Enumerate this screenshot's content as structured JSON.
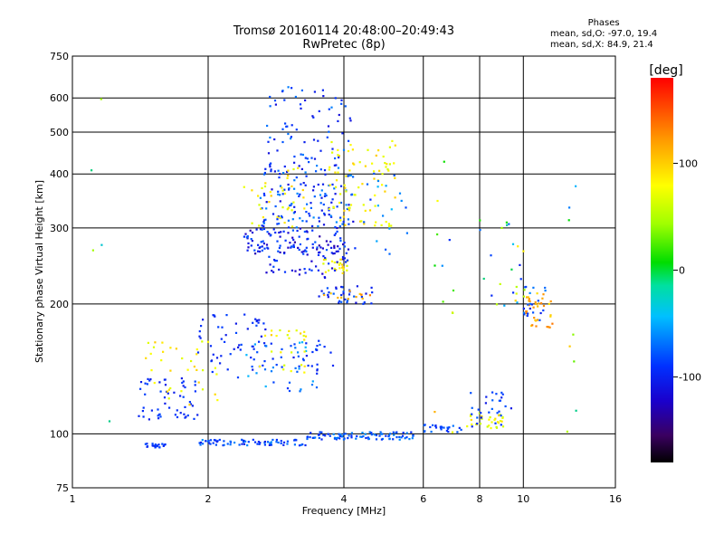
{
  "header": {
    "title_line1": "Tromsø 20160114 20:48:00–20:49:43",
    "title_line2": "RwPretec (8p)"
  },
  "stats": {
    "heading": "Phases",
    "line_o": "mean, sd,O: -97.0, 19.4",
    "line_x": "mean, sd,X:  84.9, 21.4"
  },
  "colorbar": {
    "label": "[deg]",
    "ticks": [
      "100",
      "0",
      "-100"
    ],
    "tick_values": [
      100,
      0,
      -100
    ],
    "range": [
      -180,
      180
    ]
  },
  "chart_data": {
    "type": "scatter",
    "title": "Tromsø 20160114 20:48:00–20:49:43",
    "subtitle": "RwPretec (8p)",
    "xlabel": "Frequency [MHz]",
    "ylabel": "Stationary phase Virtual Height [km]",
    "xscale": "log",
    "yscale": "log",
    "xlim": [
      1,
      16
    ],
    "ylim": [
      75,
      750
    ],
    "xticks": [
      1,
      2,
      4,
      6,
      8,
      10,
      16
    ],
    "xtick_labels": [
      "1",
      "2",
      "4",
      "6",
      "8",
      "10",
      "16"
    ],
    "yticks": [
      75,
      100,
      200,
      300,
      400,
      500,
      600,
      750
    ],
    "ytick_labels": [
      "75",
      "100",
      "200",
      "300",
      "400",
      "500",
      "600",
      "750"
    ],
    "grid": true,
    "colorbar_label": "[deg]",
    "clusters": [
      {
        "x": [
          1.45,
          1.65
        ],
        "y": [
          93,
          95
        ],
        "n": 22,
        "phase": [
          -110,
          -90
        ]
      },
      {
        "x": [
          1.9,
          3.3
        ],
        "y": [
          94,
          97
        ],
        "n": 70,
        "phase": [
          -120,
          -60
        ]
      },
      {
        "x": [
          3.3,
          5.7
        ],
        "y": [
          97,
          101
        ],
        "n": 90,
        "phase": [
          -110,
          -60
        ]
      },
      {
        "x": [
          6.0,
          7.3
        ],
        "y": [
          101,
          105
        ],
        "n": 25,
        "phase": [
          -110,
          -70
        ]
      },
      {
        "x": [
          7.5,
          9.2
        ],
        "y": [
          103,
          112
        ],
        "n": 30,
        "phase": [
          60,
          110
        ]
      },
      {
        "x": [
          7.6,
          9.4
        ],
        "y": [
          104,
          125
        ],
        "n": 28,
        "phase": [
          -120,
          -80
        ]
      },
      {
        "x": [
          1.4,
          1.9
        ],
        "y": [
          108,
          135
        ],
        "n": 55,
        "phase": [
          -120,
          -90
        ]
      },
      {
        "x": [
          1.45,
          2.1
        ],
        "y": [
          115,
          165
        ],
        "n": 35,
        "phase": [
          70,
          110
        ]
      },
      {
        "x": [
          1.85,
          2.7
        ],
        "y": [
          135,
          190
        ],
        "n": 55,
        "phase": [
          -120,
          -90
        ]
      },
      {
        "x": [
          2.4,
          3.6
        ],
        "y": [
          125,
          165
        ],
        "n": 45,
        "phase": [
          -110,
          -40
        ]
      },
      {
        "x": [
          2.6,
          3.3
        ],
        "y": [
          135,
          175
        ],
        "n": 25,
        "phase": [
          70,
          110
        ]
      },
      {
        "x": [
          3.0,
          3.8
        ],
        "y": [
          140,
          165
        ],
        "n": 18,
        "phase": [
          -120,
          -90
        ]
      },
      {
        "x": [
          3.5,
          4.8
        ],
        "y": [
          200,
          220
        ],
        "n": 35,
        "phase": [
          -130,
          -80
        ]
      },
      {
        "x": [
          3.6,
          4.6
        ],
        "y": [
          205,
          215
        ],
        "n": 12,
        "phase": [
          110,
          140
        ]
      },
      {
        "x": [
          3.6,
          4.1
        ],
        "y": [
          235,
          255
        ],
        "n": 25,
        "phase": [
          70,
          110
        ]
      },
      {
        "x": [
          2.4,
          4.1
        ],
        "y": [
          260,
          300
        ],
        "n": 110,
        "phase": [
          -150,
          -80
        ]
      },
      {
        "x": [
          2.6,
          4.1
        ],
        "y": [
          230,
          270
        ],
        "n": 45,
        "phase": [
          -140,
          -90
        ]
      },
      {
        "x": [
          2.6,
          4.2
        ],
        "y": [
          300,
          420
        ],
        "n": 140,
        "phase": [
          -130,
          -60
        ]
      },
      {
        "x": [
          2.4,
          3.3
        ],
        "y": [
          300,
          420
        ],
        "n": 35,
        "phase": [
          70,
          110
        ]
      },
      {
        "x": [
          3.7,
          5.2
        ],
        "y": [
          300,
          480
        ],
        "n": 80,
        "phase": [
          70,
          110
        ]
      },
      {
        "x": [
          2.7,
          4.2
        ],
        "y": [
          420,
          640
        ],
        "n": 70,
        "phase": [
          -130,
          -60
        ]
      },
      {
        "x": [
          4.2,
          5.6
        ],
        "y": [
          260,
          420
        ],
        "n": 20,
        "phase": [
          -110,
          -40
        ]
      },
      {
        "x": [
          6.3,
          7.0
        ],
        "y": [
          100,
          560
        ],
        "n": 12,
        "phase": [
          -120,
          120
        ]
      },
      {
        "x": [
          8.0,
          10.2
        ],
        "y": [
          195,
          320
        ],
        "n": 25,
        "phase": [
          -120,
          130
        ]
      },
      {
        "x": [
          10.1,
          11.6
        ],
        "y": [
          175,
          215
        ],
        "n": 35,
        "phase": [
          100,
          140
        ]
      },
      {
        "x": [
          10.0,
          11.2
        ],
        "y": [
          180,
          220
        ],
        "n": 20,
        "phase": [
          -120,
          -60
        ]
      },
      {
        "x": [
          12.5,
          13.2
        ],
        "y": [
          95,
          410
        ],
        "n": 8,
        "phase": [
          -110,
          120
        ]
      },
      {
        "x": [
          1.0,
          1.3
        ],
        "y": [
          95,
          640
        ],
        "n": 5,
        "phase": [
          -110,
          60
        ]
      }
    ]
  }
}
